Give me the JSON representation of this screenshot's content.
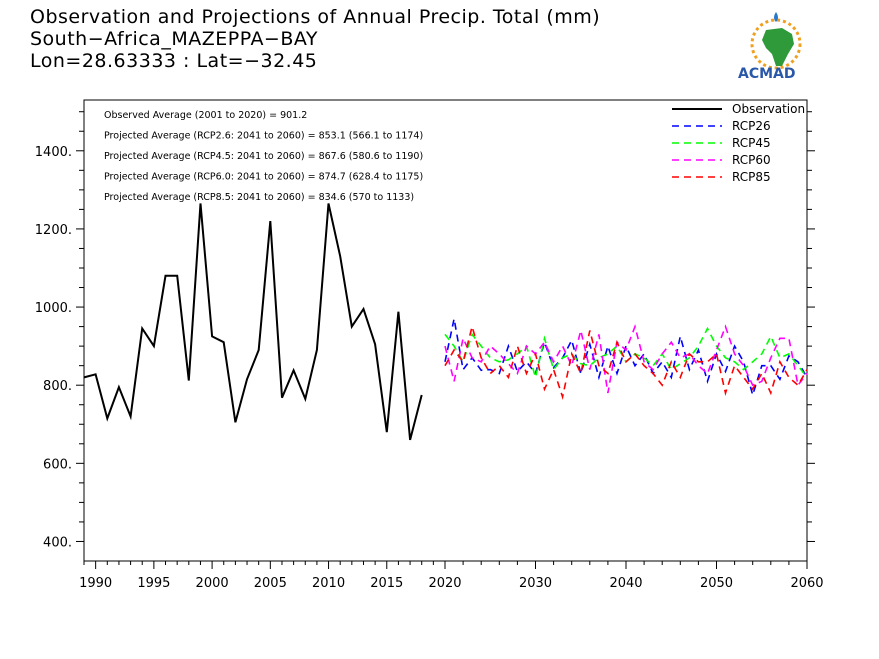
{
  "title": {
    "line1": "Observation and Projections of Annual Precip. Total (mm)",
    "line2": "South−Africa_MAZEPPA−BAY",
    "line3": "Lon=28.63333 : Lat=−32.45"
  },
  "logo": {
    "text": "ACMAD"
  },
  "annotations": [
    "Observed Average (2001 to 2020) = 901.2",
    "Projected Average (RCP2.6: 2041 to 2060) = 853.1 (566.1 to 1174)",
    "Projected Average (RCP4.5: 2041 to 2060) = 867.6 (580.6 to 1190)",
    "Projected Average (RCP6.0: 2041 to 2060) = 874.7 (628.4 to 1175)",
    "Projected Average (RCP8.5: 2041 to 2060) = 834.6 (570 to 1133)"
  ],
  "chart_data": {
    "type": "line",
    "xlim": [
      1989,
      2060
    ],
    "ylim": [
      350,
      1530
    ],
    "x_ticks": [
      1990,
      1995,
      2000,
      2005,
      2010,
      2015,
      2020,
      2030,
      2040,
      2050,
      2060
    ],
    "y_ticks": [
      400,
      600,
      800,
      1000,
      1200,
      1400
    ],
    "y_tick_labels": [
      "400.",
      "600.",
      "800.",
      "1000.",
      "1200.",
      "1400."
    ],
    "grid": false,
    "legend_position": "top-right",
    "series": [
      {
        "name": "Observation",
        "color": "#000000",
        "dash": "solid",
        "x": [
          1989,
          1990,
          1991,
          1992,
          1993,
          1994,
          1995,
          1996,
          1997,
          1998,
          1999,
          2000,
          2001,
          2002,
          2003,
          2004,
          2005,
          2006,
          2007,
          2008,
          2009,
          2010,
          2011,
          2012,
          2013,
          2014,
          2015,
          2016,
          2017,
          2018,
          2019
        ],
        "values": [
          820,
          828,
          715,
          795,
          720,
          945,
          900,
          1080,
          1080,
          812,
          1265,
          925,
          910,
          705,
          815,
          890,
          1220,
          768,
          838,
          765,
          890,
          1265,
          1130,
          950,
          995,
          905,
          680,
          988,
          660,
          775,
          null
        ]
      },
      {
        "name": "RCP26",
        "color": "#0000ff",
        "dash": "dashed",
        "x": [
          2020,
          2021,
          2022,
          2023,
          2024,
          2025,
          2026,
          2027,
          2028,
          2029,
          2030,
          2031,
          2032,
          2033,
          2034,
          2035,
          2036,
          2037,
          2038,
          2039,
          2040,
          2041,
          2042,
          2043,
          2044,
          2045,
          2046,
          2047,
          2048,
          2049,
          2050,
          2051,
          2052,
          2053,
          2054,
          2055,
          2056,
          2057,
          2058,
          2059,
          2060
        ],
        "values": [
          860,
          970,
          840,
          870,
          838,
          840,
          830,
          900,
          835,
          860,
          830,
          910,
          845,
          870,
          915,
          830,
          905,
          820,
          900,
          830,
          900,
          850,
          880,
          830,
          860,
          820,
          925,
          840,
          890,
          810,
          880,
          835,
          900,
          860,
          775,
          850,
          850,
          815,
          875,
          860,
          820
        ]
      },
      {
        "name": "RCP45",
        "color": "#00ff00",
        "dash": "dashed",
        "x": [
          2020,
          2021,
          2022,
          2023,
          2024,
          2025,
          2026,
          2027,
          2028,
          2029,
          2030,
          2031,
          2032,
          2033,
          2034,
          2035,
          2036,
          2037,
          2038,
          2039,
          2040,
          2041,
          2042,
          2043,
          2044,
          2045,
          2046,
          2047,
          2048,
          2049,
          2050,
          2051,
          2052,
          2053,
          2054,
          2055,
          2056,
          2057,
          2058,
          2059,
          2060
        ],
        "values": [
          930,
          900,
          860,
          930,
          900,
          870,
          860,
          865,
          880,
          900,
          820,
          920,
          840,
          870,
          880,
          855,
          850,
          870,
          880,
          900,
          860,
          880,
          870,
          850,
          880,
          840,
          855,
          870,
          900,
          945,
          900,
          870,
          860,
          840,
          860,
          880,
          925,
          870,
          880,
          850,
          820
        ]
      },
      {
        "name": "RCP60",
        "color": "#ff00ff",
        "dash": "dashed",
        "x": [
          2020,
          2021,
          2022,
          2023,
          2024,
          2025,
          2026,
          2027,
          2028,
          2029,
          2030,
          2031,
          2032,
          2033,
          2034,
          2035,
          2036,
          2037,
          2038,
          2039,
          2040,
          2041,
          2042,
          2043,
          2044,
          2045,
          2046,
          2047,
          2048,
          2049,
          2050,
          2051,
          2052,
          2053,
          2054,
          2055,
          2056,
          2057,
          2058,
          2059,
          2060
        ],
        "values": [
          900,
          810,
          920,
          870,
          860,
          900,
          880,
          855,
          830,
          900,
          880,
          910,
          860,
          900,
          850,
          940,
          840,
          930,
          780,
          910,
          890,
          950,
          860,
          840,
          880,
          910,
          870,
          880,
          850,
          830,
          890,
          950,
          880,
          850,
          800,
          810,
          870,
          920,
          920,
          800,
          830
        ]
      },
      {
        "name": "RCP85",
        "color": "#ff0000",
        "dash": "dashed",
        "x": [
          2020,
          2021,
          2022,
          2023,
          2024,
          2025,
          2026,
          2027,
          2028,
          2029,
          2030,
          2031,
          2032,
          2033,
          2034,
          2035,
          2036,
          2037,
          2038,
          2039,
          2040,
          2041,
          2042,
          2043,
          2044,
          2045,
          2046,
          2047,
          2048,
          2049,
          2050,
          2051,
          2052,
          2053,
          2054,
          2055,
          2056,
          2057,
          2058,
          2059,
          2060
        ],
        "values": [
          850,
          890,
          860,
          950,
          870,
          830,
          850,
          820,
          900,
          830,
          880,
          790,
          840,
          770,
          880,
          830,
          940,
          850,
          830,
          910,
          860,
          880,
          850,
          830,
          800,
          860,
          820,
          880,
          860,
          860,
          880,
          780,
          850,
          820,
          790,
          830,
          780,
          860,
          820,
          800,
          840
        ]
      }
    ]
  }
}
